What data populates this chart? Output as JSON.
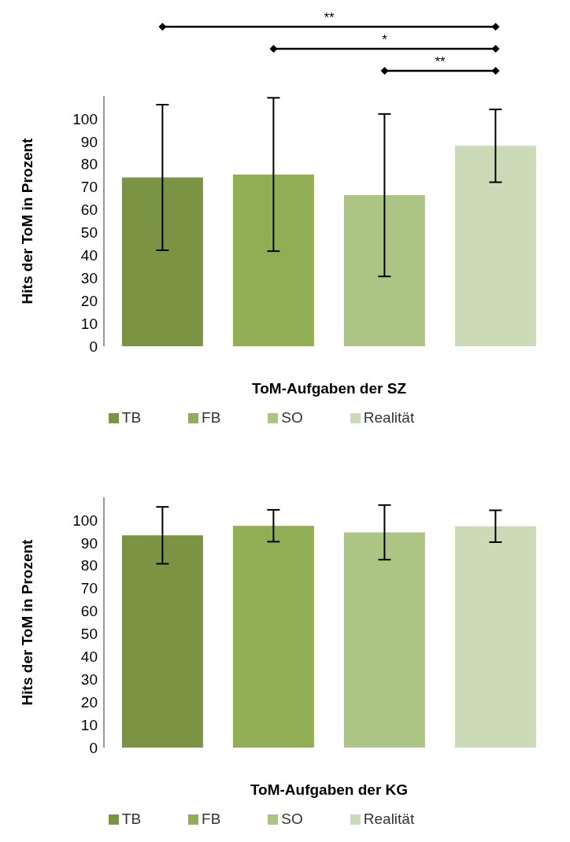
{
  "chart_data": [
    {
      "type": "bar",
      "categories": [
        null
      ],
      "xlabel": "ToM-Aufgaben der SZ",
      "ylabel": "Hits der ToM in Prozent",
      "ylim": [
        0,
        110
      ],
      "yticks": [
        0,
        10,
        20,
        30,
        40,
        50,
        60,
        70,
        80,
        90,
        100
      ],
      "grid": false,
      "legend": "bottom",
      "annotations": [
        "**",
        "*",
        "**"
      ],
      "series": [
        {
          "name": "TB",
          "color": "#7a9444",
          "values": [
            74.2
          ],
          "errors": [
            32
          ]
        },
        {
          "name": "FB",
          "color": "#91ae55",
          "values": [
            75.5
          ],
          "errors": [
            33.7
          ]
        },
        {
          "name": "SO",
          "color": "#adc584",
          "values": [
            66.4
          ],
          "errors": [
            35.7
          ]
        },
        {
          "name": "Realität",
          "color": "#cddab7",
          "values": [
            88.1
          ],
          "errors": [
            16
          ]
        }
      ]
    },
    {
      "type": "bar",
      "categories": [
        null
      ],
      "xlabel": "ToM-Aufgaben der KG",
      "ylabel": "Hits der ToM in Prozent",
      "ylim": [
        0,
        110
      ],
      "yticks": [
        0,
        10,
        20,
        30,
        40,
        50,
        60,
        70,
        80,
        90,
        100
      ],
      "grid": false,
      "legend": "bottom",
      "series": [
        {
          "name": "TB",
          "color": "#7a9444",
          "values": [
            93.3
          ],
          "errors": [
            12.5
          ]
        },
        {
          "name": "FB",
          "color": "#91ae55",
          "values": [
            97.5
          ],
          "errors": [
            7
          ]
        },
        {
          "name": "SO",
          "color": "#adc584",
          "values": [
            94.6
          ],
          "errors": [
            12
          ]
        },
        {
          "name": "Realität",
          "color": "#cddab7",
          "values": [
            97.3
          ],
          "errors": [
            7
          ]
        }
      ]
    }
  ]
}
